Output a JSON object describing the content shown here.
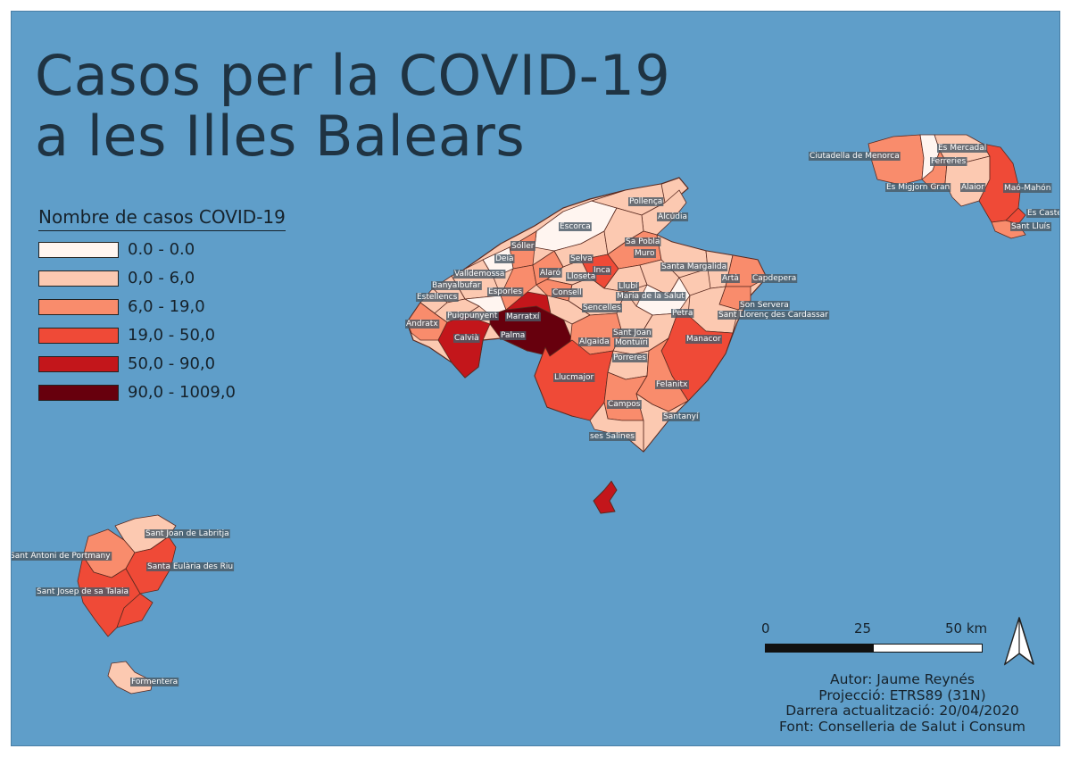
{
  "title": {
    "line1": "Casos per la COVID-19",
    "line2": "a les Illes Balears"
  },
  "legend": {
    "title": "Nombre de casos COVID-19",
    "classes": [
      {
        "label": "0.0 - 0.0",
        "color": "#fff5f0"
      },
      {
        "label": "0,0 - 6,0",
        "color": "#fcc9b1"
      },
      {
        "label": "6,0 - 19,0",
        "color": "#f98c6c"
      },
      {
        "label": "19,0 - 50,0",
        "color": "#ef4a37"
      },
      {
        "label": "50,0 - 90,0",
        "color": "#c3161b"
      },
      {
        "label": "90,0 - 1009,0",
        "color": "#67000d"
      }
    ]
  },
  "municipalities": [
    "Ciutadella de Menorca",
    "Es Mercadal",
    "Ferreries",
    "Es Migjorn Gran",
    "Alaior",
    "Maó-Mahón",
    "Es Castell",
    "Sant Lluís",
    "Pollença",
    "Alcúdia",
    "Escorca",
    "Sóller",
    "Sa Pobla",
    "Muro",
    "Deià",
    "Selva",
    "Valldemossa",
    "Alaró",
    "Inca",
    "Lloseta",
    "Santa Margalida",
    "Artà",
    "Capdepera",
    "Banyalbufar",
    "Esporles",
    "Consell",
    "Llubí",
    "Estellencs",
    "Maria de la Salut",
    "Son Servera",
    "Puigpunyent",
    "Marratxí",
    "Sencelles",
    "Sant Llorenç des Cardassar",
    "Andratx",
    "Petra",
    "Calvià",
    "Palma",
    "Sant Joan",
    "Algaida",
    "Montuïri",
    "Manacor",
    "Porreres",
    "Llucmajor",
    "Felanitx",
    "Campos",
    "Santanyí",
    "ses Salines",
    "Sant Joan de Labritja",
    "Sant Antoni de Portmany",
    "Santa Eulària des Riu",
    "Sant Josep de sa Talaia",
    "Formentera"
  ],
  "scalebar": {
    "ticks": [
      "0",
      "25",
      "50 km"
    ]
  },
  "north_arrow": "north-arrow-icon",
  "credits": {
    "author": "Autor: Jaume Reynés",
    "projection": "Projecció: ETRS89 (31N)",
    "updated": "Darrera actualització: 20/04/2020",
    "source": "Font: Conselleria de Salut i Consum"
  },
  "colors": {
    "sea": "#5f9ec9",
    "text": "#1f3342",
    "border": "#5a2a20"
  }
}
